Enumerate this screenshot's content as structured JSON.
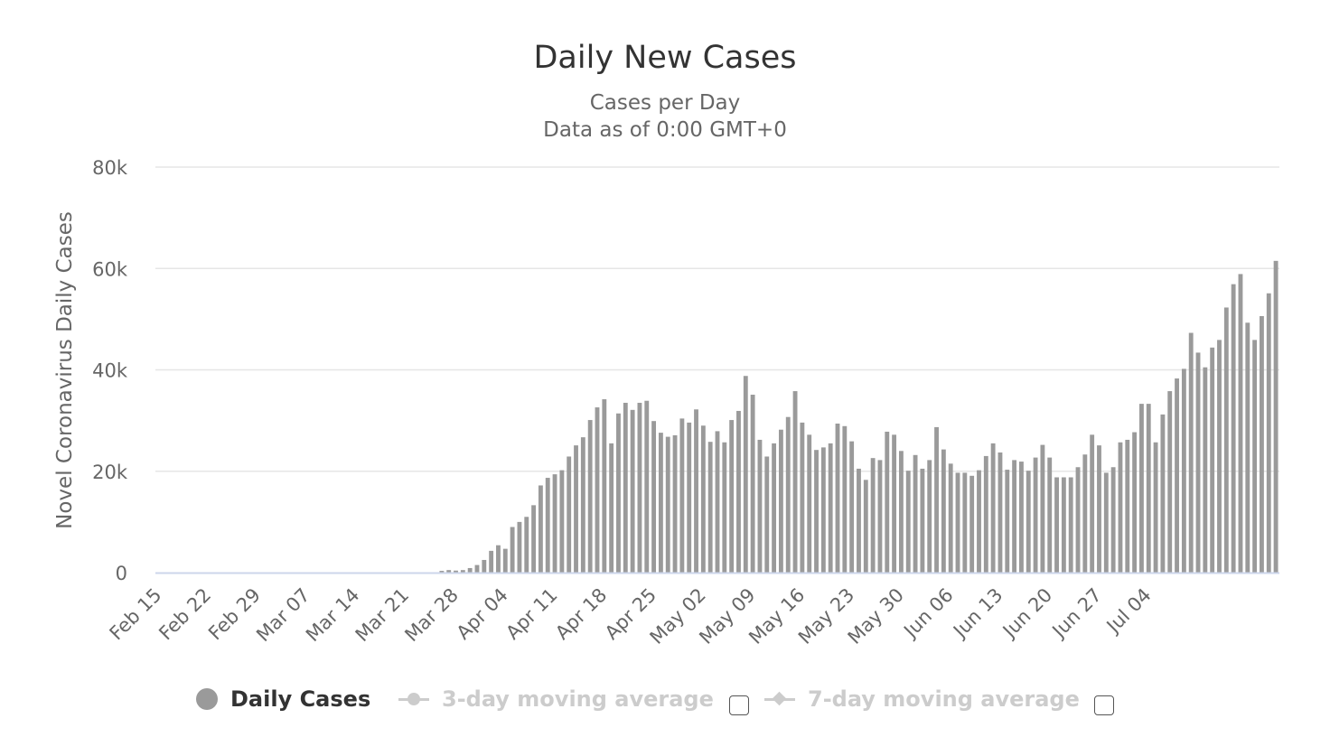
{
  "chart_data": {
    "type": "bar",
    "title": "Daily New Cases",
    "subtitle_lines": [
      "Cases per Day",
      "Data as of 0:00 GMT+0"
    ],
    "xlabel": "",
    "ylabel": "Novel Coronavirus Daily Cases",
    "ylim": [
      0,
      80000
    ],
    "y_ticks": [
      {
        "value": 0,
        "label": "0"
      },
      {
        "value": 20000,
        "label": "20k"
      },
      {
        "value": 40000,
        "label": "40k"
      },
      {
        "value": 60000,
        "label": "60k"
      },
      {
        "value": 80000,
        "label": "80k"
      }
    ],
    "x_tick_labels": [
      "Feb 15",
      "Feb 22",
      "Feb 29",
      "Mar 07",
      "Mar 14",
      "Mar 21",
      "Mar 28",
      "Apr 04",
      "Apr 11",
      "Apr 18",
      "Apr 25",
      "May 02",
      "May 09",
      "May 16",
      "May 23",
      "May 30",
      "Jun 06",
      "Jun 13",
      "Jun 20",
      "Jun 27",
      "Jul 04"
    ],
    "x_tick_every": 7,
    "grid": true,
    "legend_position": "bottom",
    "bar_color": "#9a9a9a",
    "grid_color": "#e6e6e6",
    "axis_line_color": "#ccd6eb",
    "series": [
      {
        "name": "Daily Cases",
        "values": [
          0,
          0,
          0,
          0,
          0,
          0,
          0,
          0,
          0,
          0,
          0,
          0,
          0,
          0,
          0,
          0,
          0,
          0,
          0,
          0,
          0,
          0,
          0,
          0,
          0,
          0,
          0,
          0,
          0,
          0,
          0,
          0,
          0,
          0,
          0,
          0,
          0,
          0,
          0,
          0,
          350,
          500,
          400,
          500,
          900,
          1500,
          2500,
          4300,
          5400,
          4700,
          9000,
          10000,
          11000,
          13300,
          17200,
          18700,
          19400,
          20200,
          22900,
          25100,
          26700,
          30100,
          32600,
          34200,
          25500,
          31400,
          33500,
          32100,
          33500,
          33900,
          29900,
          27600,
          26800,
          27100,
          30400,
          29600,
          32200,
          29000,
          25800,
          27900,
          25700,
          30100,
          31900,
          38800,
          35100,
          26200,
          22900,
          25500,
          28200,
          30700,
          35800,
          29600,
          27200,
          24200,
          24700,
          25500,
          29400,
          28900,
          25900,
          20500,
          18300,
          22600,
          22200,
          27800,
          27200,
          24000,
          20100,
          23200,
          20500,
          22200,
          28700,
          24300,
          21500,
          19700,
          19700,
          19100,
          20200,
          23000,
          25500,
          23700,
          20300,
          22200,
          21900,
          20100,
          22700,
          25200,
          22700,
          18800,
          18800,
          18800,
          20800,
          23300,
          27200,
          25100,
          19700,
          20800,
          25700,
          26200,
          27700,
          33300,
          33300,
          25700,
          31200,
          35800,
          38300,
          40200,
          47300,
          43400,
          40500,
          44400,
          45900,
          52300,
          56900,
          58900,
          49300,
          45900,
          50600,
          55100,
          61500
        ]
      }
    ]
  },
  "legend": {
    "items": [
      {
        "label": "Daily Cases",
        "color": "#9a9a9a"
      },
      {
        "label": "3-day moving average",
        "color": "#cccccc"
      },
      {
        "label": "7-day moving average",
        "color": "#cccccc"
      }
    ]
  },
  "colors": {
    "title": "#333333",
    "subtitle": "#666666",
    "axis_text": "#666666",
    "legend_active": "#333333",
    "legend_inactive": "#cccccc"
  }
}
